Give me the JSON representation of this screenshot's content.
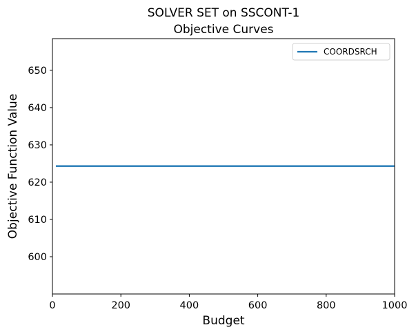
{
  "chart_data": {
    "type": "line",
    "title": [
      "SOLVER SET on SSCONT-1",
      "Objective Curves"
    ],
    "xlabel": "Budget",
    "ylabel": "Objective Function Value",
    "xlim": [
      0,
      1000
    ],
    "ylim": [
      590,
      658.5
    ],
    "xticks": [
      0,
      200,
      400,
      600,
      800,
      1000
    ],
    "yticks": [
      600,
      610,
      620,
      630,
      640,
      650
    ],
    "grid": false,
    "legend_position": "top-right",
    "series": [
      {
        "name": "COORDSRCH",
        "color": "#1f77b4",
        "x": [
          10,
          1000
        ],
        "y": [
          624.3,
          624.3
        ]
      }
    ]
  }
}
